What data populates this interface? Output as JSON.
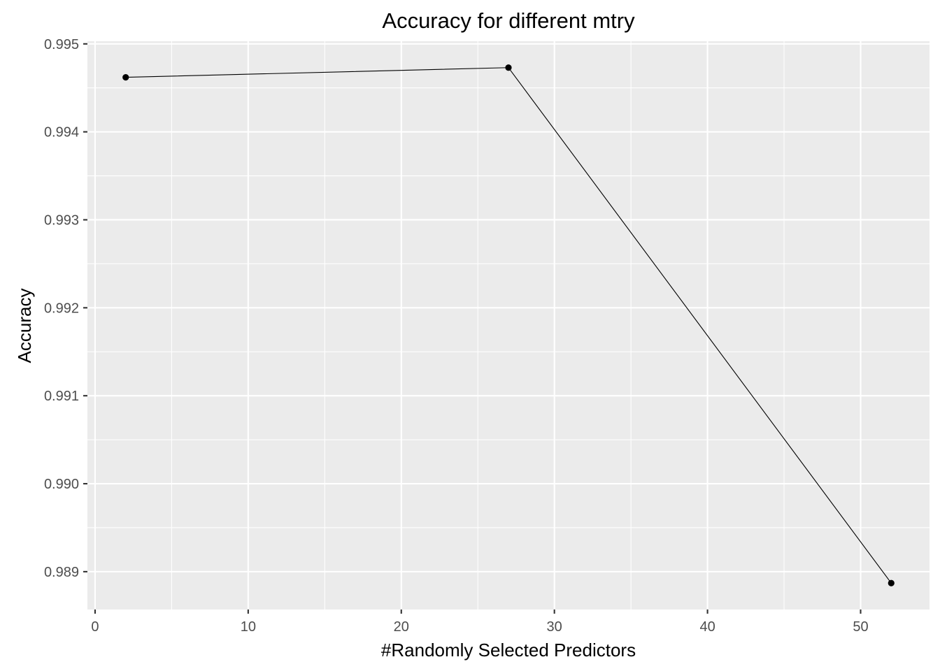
{
  "chart_data": {
    "type": "line",
    "title": "Accuracy for different mtry",
    "xlabel": "#Randomly Selected Predictors",
    "ylabel": "Accuracy",
    "x": [
      2,
      27,
      52
    ],
    "series": [
      {
        "values": [
          0.99462,
          0.99473,
          0.98887
        ]
      }
    ],
    "xlim": [
      -0.5,
      54.5
    ],
    "ylim": [
      0.98857,
      0.99503
    ],
    "x_ticks": [
      0,
      10,
      20,
      30,
      40,
      50
    ],
    "x_tick_labels": [
      "0",
      "10",
      "20",
      "30",
      "40",
      "50"
    ],
    "y_ticks": [
      0.989,
      0.99,
      0.991,
      0.992,
      0.993,
      0.994,
      0.995
    ],
    "y_tick_labels": [
      "0.989",
      "0.990",
      "0.991",
      "0.992",
      "0.993",
      "0.994",
      "0.995"
    ],
    "grid": true,
    "legend": "none",
    "colors": {
      "panel_background": "#EBEBEB",
      "grid": "#FFFFFF",
      "series": "#000000",
      "tick_label": "#4D4D4D"
    }
  }
}
